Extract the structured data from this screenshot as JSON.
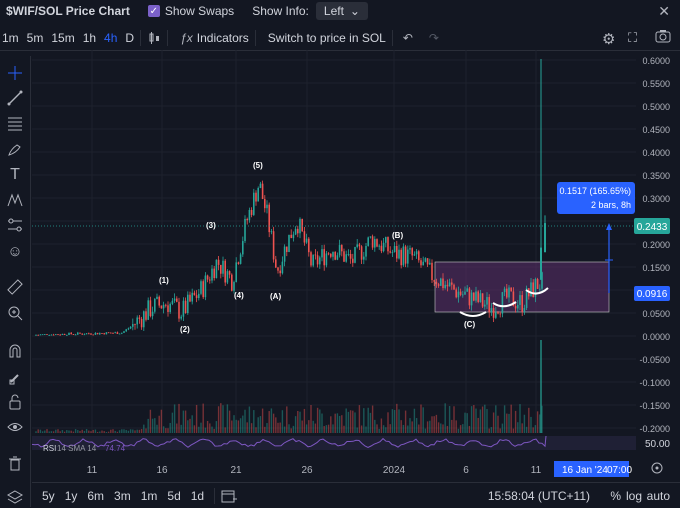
{
  "header": {
    "title": "$WIF/SOL Price Chart",
    "show_swaps_label": "Show Swaps",
    "show_info_label": "Show Info:",
    "show_info_value": "Left"
  },
  "toolbar": {
    "timeframes": [
      "1m",
      "5m",
      "15m",
      "1h",
      "4h",
      "D"
    ],
    "active_timeframe": "4h",
    "indicators_label": "Indicators",
    "switch_label": "Switch to price in SOL"
  },
  "chart_data": {
    "type": "candlestick",
    "y_ticks": [
      "0.6000",
      "0.5500",
      "0.5000",
      "0.4500",
      "0.4000",
      "0.3500",
      "0.3000",
      "0.2500",
      "0.2000",
      "0.1500",
      "0.1000",
      "0.0500",
      "0.0000",
      "-0.0500",
      "-0.1000",
      "-0.1500",
      "-0.2000"
    ],
    "x_ticks": [
      "11",
      "16",
      "21",
      "26",
      "2024",
      "6",
      "11"
    ],
    "current_price": "0.2433",
    "lower_price_label": "0.0916",
    "measure_label_1": "0.1517 (165.65%)",
    "measure_label_2": "2 bars, 8h",
    "crosshair_date": "16 Jan '24",
    "crosshair_time": "07:00",
    "rsi_label": "RSI",
    "rsi_params": "14 SMA 14",
    "rsi_value": "74.74",
    "rsi_scale": "50.00",
    "wave_labels": [
      "(1)",
      "(2)",
      "(3)",
      "(4)",
      "(5)",
      "(A)",
      "(B)",
      "(C)"
    ],
    "up_color": "#26a69a",
    "down_color": "#ef5350",
    "box_color": "#5d2f6b"
  },
  "bottom": {
    "ranges": [
      "5y",
      "1y",
      "6m",
      "3m",
      "1m",
      "5d",
      "1d"
    ],
    "clock": "15:58:04 (UTC+11)",
    "percent": "%",
    "log": "log",
    "auto": "auto"
  }
}
